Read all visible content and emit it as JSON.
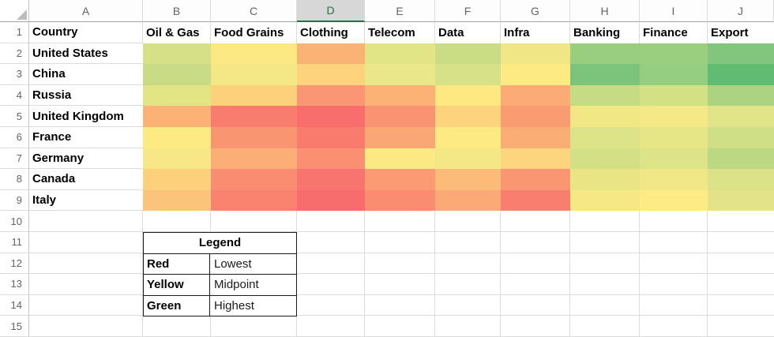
{
  "sheet": {
    "column_letters": [
      "A",
      "B",
      "C",
      "D",
      "E",
      "F",
      "G",
      "H",
      "I",
      "J"
    ],
    "selected_column": "D",
    "row_numbers": [
      1,
      2,
      3,
      4,
      5,
      6,
      7,
      8,
      9,
      10,
      11,
      12,
      13,
      14,
      15
    ]
  },
  "table": {
    "header_row": [
      "Country",
      "Oil & Gas",
      "Food Grains",
      "Clothing",
      "Telecom",
      "Data",
      "Infra",
      "Banking",
      "Finance",
      "Export"
    ],
    "rows": [
      {
        "country": "United States",
        "colors": [
          "#D6E187",
          "#FDE984",
          "#FBB375",
          "#E2E586",
          "#CBDD84",
          "#F0E685",
          "#99CE80",
          "#9ACF80",
          "#82C67E"
        ]
      },
      {
        "country": "China",
        "colors": [
          "#C9DC85",
          "#F4E786",
          "#FDD37E",
          "#EAE78A",
          "#D7E187",
          "#FDEA82",
          "#7CC47C",
          "#96CE81",
          "#62BB72"
        ]
      },
      {
        "country": "Russia",
        "colors": [
          "#E3E584",
          "#FDD17C",
          "#FA9673",
          "#FCB275",
          "#FDE881",
          "#FBAB76",
          "#C6DC84",
          "#D3E083",
          "#ACD381"
        ]
      },
      {
        "country": "United Kingdom",
        "colors": [
          "#FCB175",
          "#F97D6F",
          "#F86E6C",
          "#FA9372",
          "#FDD37D",
          "#FA9C72",
          "#F2E785",
          "#F5E886",
          "#E2E48A"
        ]
      },
      {
        "country": "France",
        "colors": [
          "#FDEA83",
          "#FA9572",
          "#F87B6E",
          "#FBA775",
          "#FDEA82",
          "#FBAD76",
          "#DDE388",
          "#E6E687",
          "#CFDF85"
        ]
      },
      {
        "country": "Germany",
        "colors": [
          "#F7E787",
          "#FBAE76",
          "#FA8F71",
          "#FDE983",
          "#F3E786",
          "#FDD57E",
          "#D3E086",
          "#DCE388",
          "#BCD883"
        ]
      },
      {
        "country": "Canada",
        "colors": [
          "#FDD07C",
          "#FA8D71",
          "#F8756F",
          "#FA9B73",
          "#FCBB78",
          "#FA9672",
          "#E9E584",
          "#F2E787",
          "#DBE288"
        ]
      },
      {
        "country": "Italy",
        "colors": [
          "#FCC47A",
          "#F9836F",
          "#F76D6D",
          "#FA8C70",
          "#FBAA77",
          "#F97E70",
          "#F6E885",
          "#FDEB86",
          "#E3E489"
        ]
      }
    ]
  },
  "legend": {
    "title": "Legend",
    "entries": [
      {
        "color_name": "Red",
        "meaning": "Lowest"
      },
      {
        "color_name": "Yellow",
        "meaning": "Midpoint"
      },
      {
        "color_name": "Green",
        "meaning": "Highest"
      }
    ]
  },
  "colors": {
    "selected_column_accent": "#217346",
    "scale_red": "#F8696B",
    "scale_yellow": "#FFEB84",
    "scale_green": "#63BE7B"
  }
}
